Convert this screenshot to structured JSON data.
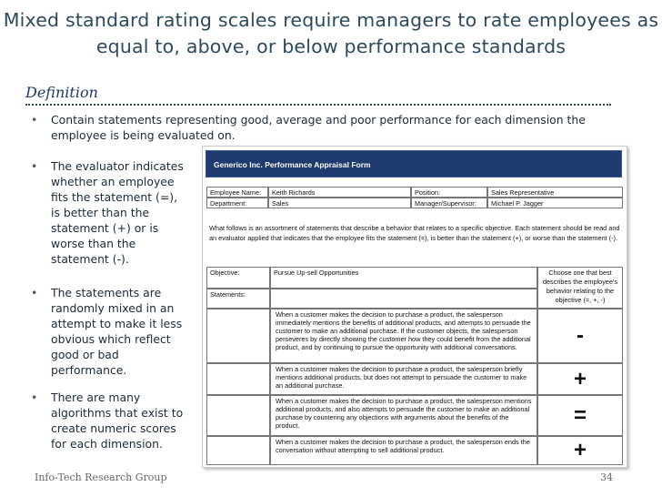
{
  "title": "Mixed standard rating scales require managers to rate employees as equal to, above, or below performance standards",
  "section": "Definition",
  "bullets": [
    "Contain statements representing good, average and poor performance for each dimension the employee is being evaluated on.",
    "The evaluator indicates whether an employee fits the statement (=), is better than the statement (+) or is worse than the statement (-).",
    "The statements are randomly mixed in an attempt to make it less obvious which reflect good or bad performance.",
    "There are many algorithms that exist to create numeric scores for each dimension."
  ],
  "form": {
    "title": "Generico Inc. Performance Appraisal Form",
    "info": [
      [
        "Employee Name:",
        "Keith Richards",
        "Position:",
        "Sales Representative"
      ],
      [
        "Department:",
        "Sales",
        "Manager/Supervisor:",
        "Michael P. Jagger"
      ]
    ],
    "intro": "What follows is an assortment of statements that describe a behavior that relates to a specific objective. Each statement should be read and an evaluator applied that indicates that the employee fits the statement (=), is better than the statement (+), or worse than the statement (-).",
    "objective_label": "Objective:",
    "objective": "Pursue Up-sell Opportunities",
    "choice_header": "Choose one that best describes the employee's behavior relating to the objective (=, +, -)",
    "statements_label": "Statements:",
    "statements": [
      {
        "text": "When a customer makes the decision to purchase a product, the salesperson immediately mentions the benefits of additional products, and attempts to persuade the customer to make an additional purchase. If the customer objects, the salesperson perseveres by directly showing the customer how they could benefit from the additional product, and by continuing to pursue the opportunity with additional conversations.",
        "rating": "-"
      },
      {
        "text": "When a customer makes the decision to purchase a product, the salesperson briefly mentions additional products, but does not attempt to persuade the customer to make an additional purchase.",
        "rating": "+"
      },
      {
        "text": "When a customer makes the decision to purchase a product, the salesperson mentions additional products, and also attempts to persuade the customer to make an additional purchase by countering any objections with arguments about the benefits of the product.",
        "rating": "="
      },
      {
        "text": "When a customer makes the decision to purchase a product, the salesperson ends the conversation without attempting to sell additional product.",
        "rating": "+"
      }
    ]
  },
  "footer": "Info-Tech Research Group",
  "page": "34"
}
